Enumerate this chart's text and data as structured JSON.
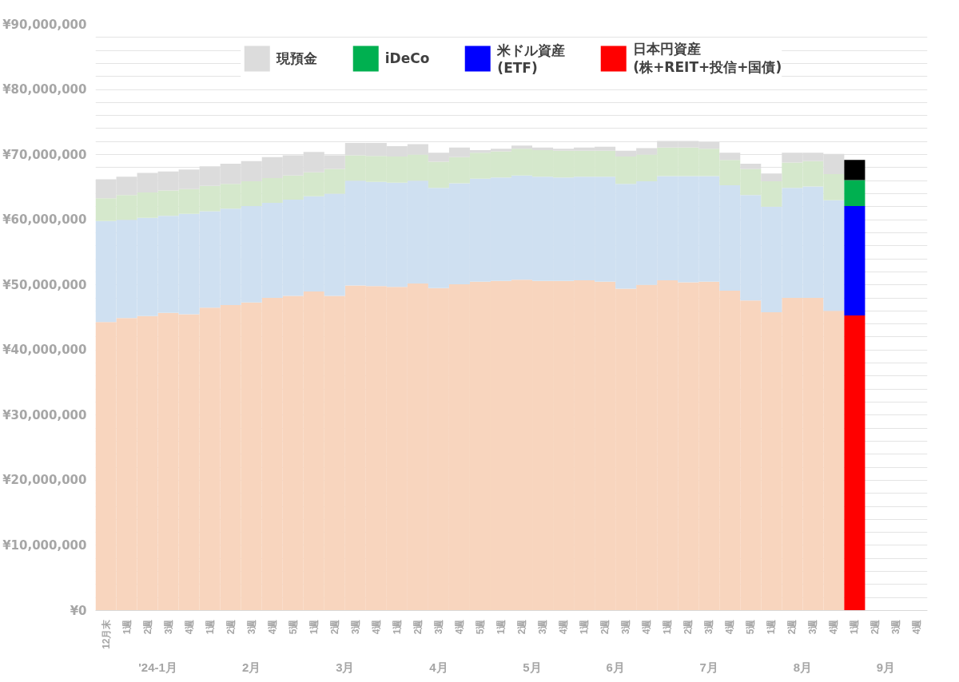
{
  "chart_data": {
    "type": "bar",
    "stacked": true,
    "legend": "top",
    "grid": "y",
    "categories": [
      "12月末",
      "1週",
      "2週",
      "3週",
      "4週",
      "1週",
      "2週",
      "3週",
      "4週",
      "5週",
      "1週",
      "2週",
      "3週",
      "4週",
      "1週",
      "2週",
      "3週",
      "4週",
      "5週",
      "1週",
      "2週",
      "3週",
      "4週",
      "1週",
      "2週",
      "3週",
      "4週",
      "1週",
      "2週",
      "3週",
      "4週",
      "5週",
      "1週",
      "2週",
      "3週",
      "4週",
      "1週",
      "2週",
      "3週",
      "4週"
    ],
    "annotations": [
      "'24-1月",
      "2月",
      "3月",
      "4月",
      "5月",
      "6月",
      "7月",
      "8月",
      "9月"
    ],
    "ylim": [
      0,
      90000000
    ],
    "yticks": [
      {
        "value": 0,
        "label": "¥0"
      },
      {
        "value": 2000000,
        "label": null
      },
      {
        "value": 4000000,
        "label": null
      },
      {
        "value": 6000000,
        "label": null
      },
      {
        "value": 8000000,
        "label": null
      },
      {
        "value": 10000000,
        "label": "¥10,000,000"
      },
      {
        "value": 12000000,
        "label": null
      },
      {
        "value": 14000000,
        "label": null
      },
      {
        "value": 16000000,
        "label": null
      },
      {
        "value": 18000000,
        "label": null
      },
      {
        "value": 20000000,
        "label": "¥20,000,000"
      },
      {
        "value": 22000000,
        "label": null
      },
      {
        "value": 24000000,
        "label": null
      },
      {
        "value": 26000000,
        "label": null
      },
      {
        "value": 28000000,
        "label": null
      },
      {
        "value": 30000000,
        "label": "¥30,000,000"
      },
      {
        "value": 32000000,
        "label": null
      },
      {
        "value": 34000000,
        "label": null
      },
      {
        "value": 36000000,
        "label": null
      },
      {
        "value": 38000000,
        "label": null
      },
      {
        "value": 40000000,
        "label": "¥40,000,000"
      },
      {
        "value": 42000000,
        "label": null
      },
      {
        "value": 44000000,
        "label": null
      },
      {
        "value": 46000000,
        "label": null
      },
      {
        "value": 48000000,
        "label": null
      },
      {
        "value": 50000000,
        "label": "¥50,000,000"
      },
      {
        "value": 52000000,
        "label": null
      },
      {
        "value": 54000000,
        "label": null
      },
      {
        "value": 56000000,
        "label": null
      },
      {
        "value": 58000000,
        "label": null
      },
      {
        "value": 60000000,
        "label": "¥60,000,000"
      },
      {
        "value": 62000000,
        "label": null
      },
      {
        "value": 64000000,
        "label": null
      },
      {
        "value": 66000000,
        "label": null
      },
      {
        "value": 68000000,
        "label": null
      },
      {
        "value": 70000000,
        "label": "¥70,000,000"
      },
      {
        "value": 72000000,
        "label": null
      },
      {
        "value": 74000000,
        "label": null
      },
      {
        "value": 76000000,
        "label": null
      },
      {
        "value": 78000000,
        "label": null
      },
      {
        "value": 80000000,
        "label": "¥80,000,000"
      },
      {
        "value": 82000000,
        "label": null
      },
      {
        "value": 84000000,
        "label": null
      },
      {
        "value": 86000000,
        "label": null
      },
      {
        "value": 88000000,
        "label": null
      },
      {
        "value": 90000000,
        "label": "¥90,000,000"
      }
    ],
    "series": [
      {
        "name": "日本円資産\n(株+REIT+投信+国債)",
        "color": "#ff0000",
        "values": [
          44300000,
          44900000,
          45200000,
          45700000,
          45500000,
          46500000,
          46900000,
          47300000,
          48000000,
          48300000,
          49000000,
          48300000,
          49900000,
          49800000,
          49700000,
          50200000,
          49500000,
          50100000,
          50500000,
          50600000,
          50800000,
          50600000,
          50600000,
          50700000,
          50500000,
          49400000,
          50000000,
          50700000,
          50400000,
          50500000,
          49100000,
          47600000,
          45800000,
          48000000,
          48000000,
          46000000,
          45300000,
          null,
          null,
          null
        ],
        "colors": [
          "#f8d5be",
          "#f8d5be",
          "#f8d5be",
          "#f8d5be",
          "#f8d5be",
          "#f8d5be",
          "#f8d5be",
          "#f8d5be",
          "#f8d5be",
          "#f8d5be",
          "#f8d5be",
          "#f8d5be",
          "#f8d5be",
          "#f8d5be",
          "#f8d5be",
          "#f8d5be",
          "#f8d5be",
          "#f8d5be",
          "#f8d5be",
          "#f8d5be",
          "#f8d5be",
          "#f8d5be",
          "#f8d5be",
          "#f8d5be",
          "#f8d5be",
          "#f8d5be",
          "#f8d5be",
          "#f8d5be",
          "#f8d5be",
          "#f8d5be",
          "#f8d5be",
          "#f8d5be",
          "#f8d5be",
          "#f8d5be",
          "#f8d5be",
          "#f8d5be",
          "#ff0000",
          "#f8d5be",
          "#f8d5be",
          "#f8d5be"
        ]
      },
      {
        "name": "米ドル資産\n(ETF)",
        "color": "#0000ff",
        "values": [
          15500000,
          15100000,
          15100000,
          14900000,
          15400000,
          14800000,
          14800000,
          14800000,
          14600000,
          14800000,
          14600000,
          15700000,
          16100000,
          16000000,
          16000000,
          15800000,
          15400000,
          15500000,
          15800000,
          15900000,
          16000000,
          16000000,
          15900000,
          15900000,
          16100000,
          16100000,
          15900000,
          16000000,
          16300000,
          16200000,
          16200000,
          16200000,
          16200000,
          16900000,
          17100000,
          17000000,
          16800000,
          null,
          null,
          null
        ],
        "colors": [
          "#cfe0f1",
          "#cfe0f1",
          "#cfe0f1",
          "#cfe0f1",
          "#cfe0f1",
          "#cfe0f1",
          "#cfe0f1",
          "#cfe0f1",
          "#cfe0f1",
          "#cfe0f1",
          "#cfe0f1",
          "#cfe0f1",
          "#cfe0f1",
          "#cfe0f1",
          "#cfe0f1",
          "#cfe0f1",
          "#cfe0f1",
          "#cfe0f1",
          "#cfe0f1",
          "#cfe0f1",
          "#cfe0f1",
          "#cfe0f1",
          "#cfe0f1",
          "#cfe0f1",
          "#cfe0f1",
          "#cfe0f1",
          "#cfe0f1",
          "#cfe0f1",
          "#cfe0f1",
          "#cfe0f1",
          "#cfe0f1",
          "#cfe0f1",
          "#cfe0f1",
          "#cfe0f1",
          "#cfe0f1",
          "#cfe0f1",
          "#0000ff",
          "#cfe0f1",
          "#cfe0f1",
          "#cfe0f1"
        ]
      },
      {
        "name": "iDeCo",
        "color": "#00b050",
        "values": [
          3500000,
          3800000,
          3900000,
          3900000,
          3800000,
          3900000,
          3800000,
          3800000,
          3800000,
          3700000,
          3700000,
          3800000,
          3900000,
          4000000,
          4000000,
          4000000,
          4000000,
          4000000,
          4000000,
          4000000,
          4100000,
          4100000,
          4100000,
          4000000,
          4000000,
          4200000,
          4100000,
          4400000,
          4400000,
          4200000,
          3900000,
          4000000,
          3900000,
          3900000,
          3900000,
          4000000,
          4000000,
          null,
          null,
          null
        ],
        "colors": [
          "#d5e8cc",
          "#d5e8cc",
          "#d5e8cc",
          "#d5e8cc",
          "#d5e8cc",
          "#d5e8cc",
          "#d5e8cc",
          "#d5e8cc",
          "#d5e8cc",
          "#d5e8cc",
          "#d5e8cc",
          "#d5e8cc",
          "#d5e8cc",
          "#d5e8cc",
          "#d5e8cc",
          "#d5e8cc",
          "#d5e8cc",
          "#d5e8cc",
          "#d5e8cc",
          "#d5e8cc",
          "#d5e8cc",
          "#d5e8cc",
          "#d5e8cc",
          "#d5e8cc",
          "#d5e8cc",
          "#d5e8cc",
          "#d5e8cc",
          "#d5e8cc",
          "#d5e8cc",
          "#d5e8cc",
          "#d5e8cc",
          "#d5e8cc",
          "#d5e8cc",
          "#d5e8cc",
          "#d5e8cc",
          "#d5e8cc",
          "#00b050",
          "#d5e8cc",
          "#d5e8cc",
          "#d5e8cc"
        ]
      },
      {
        "name": "現預金",
        "color": "#808080",
        "values": [
          2900000,
          2800000,
          3000000,
          2900000,
          3000000,
          3000000,
          3100000,
          3100000,
          3200000,
          3100000,
          3100000,
          2100000,
          1900000,
          2000000,
          1600000,
          1600000,
          1400000,
          1500000,
          400000,
          400000,
          500000,
          400000,
          300000,
          500000,
          600000,
          900000,
          1000000,
          1000000,
          1000000,
          1000000,
          1100000,
          800000,
          1200000,
          1500000,
          1300000,
          3100000,
          3100000,
          null,
          null,
          null
        ],
        "colors": [
          "#dcdcdc",
          "#dcdcdc",
          "#dcdcdc",
          "#dcdcdc",
          "#dcdcdc",
          "#dcdcdc",
          "#dcdcdc",
          "#dcdcdc",
          "#dcdcdc",
          "#dcdcdc",
          "#dcdcdc",
          "#dcdcdc",
          "#dcdcdc",
          "#dcdcdc",
          "#dcdcdc",
          "#dcdcdc",
          "#dcdcdc",
          "#dcdcdc",
          "#dcdcdc",
          "#dcdcdc",
          "#dcdcdc",
          "#dcdcdc",
          "#dcdcdc",
          "#dcdcdc",
          "#dcdcdc",
          "#dcdcdc",
          "#dcdcdc",
          "#dcdcdc",
          "#dcdcdc",
          "#dcdcdc",
          "#dcdcdc",
          "#dcdcdc",
          "#dcdcdc",
          "#dcdcdc",
          "#dcdcdc",
          "#dcdcdc",
          "#000000",
          "#dcdcdc",
          "#dcdcdc",
          "#dcdcdc"
        ]
      }
    ]
  }
}
